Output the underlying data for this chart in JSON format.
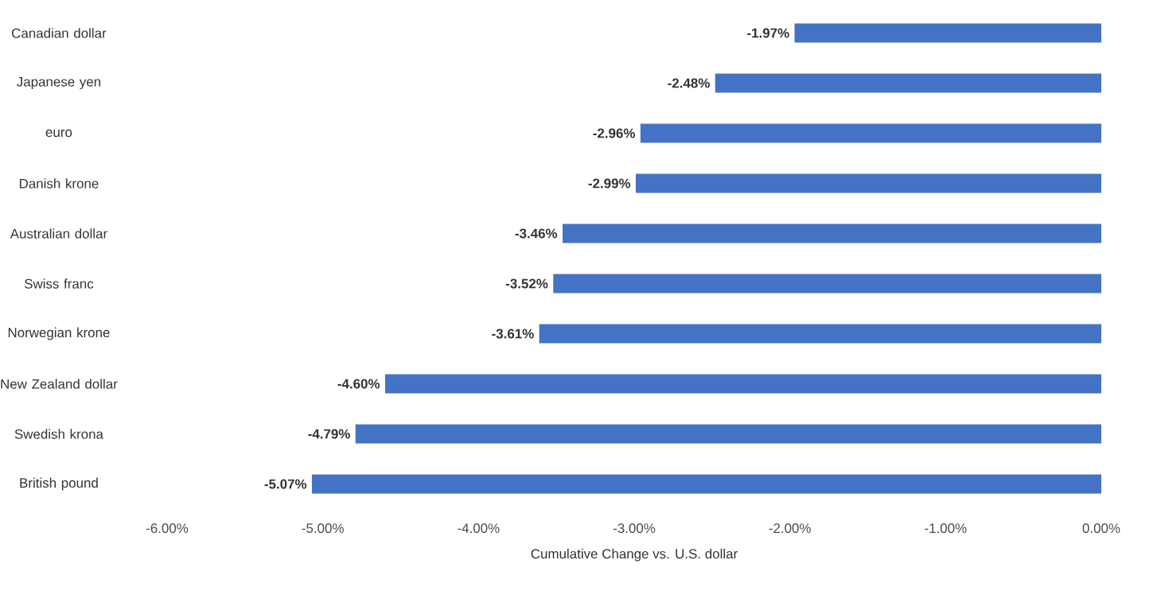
{
  "chart_data": {
    "type": "bar",
    "orientation": "horizontal",
    "xlabel": "Cumulative Change vs. U.S. dollar",
    "categories": [
      "Canadian dollar",
      "Japanese yen",
      "euro",
      "Danish krone",
      "Australian dollar",
      "Swiss franc",
      "Norwegian krone",
      "New Zealand dollar",
      "Swedish krona",
      "British pound"
    ],
    "values": [
      -1.97,
      -2.48,
      -2.96,
      -2.99,
      -3.46,
      -3.52,
      -3.61,
      -4.6,
      -4.79,
      -5.07
    ],
    "value_labels": [
      "-1.97%",
      "-2.48%",
      "-2.96%",
      "-2.99%",
      "-3.46%",
      "-3.52%",
      "-3.61%",
      "-4.60%",
      "-4.79%",
      "-5.07%"
    ],
    "color": "#4472c4",
    "xlim": [
      -6,
      0
    ],
    "xticks": [
      {
        "value": -6,
        "label": "-6.00%"
      },
      {
        "value": -5,
        "label": "-5.00%"
      },
      {
        "value": -4,
        "label": "-4.00%"
      },
      {
        "value": -3,
        "label": "-3.00%"
      },
      {
        "value": -2,
        "label": "-2.00%"
      },
      {
        "value": -1,
        "label": "-1.00%"
      },
      {
        "value": 0,
        "label": "0.00%"
      }
    ],
    "grid": false
  }
}
